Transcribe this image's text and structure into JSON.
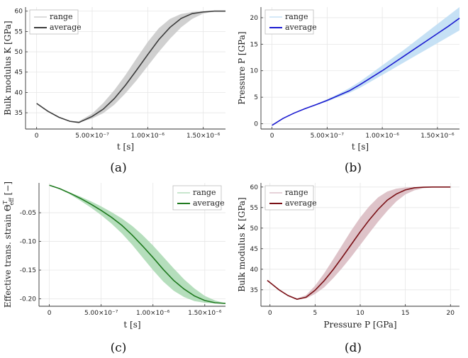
{
  "chart_data": [
    {
      "type": "line",
      "caption": "(a)",
      "xlabel": "t [s]",
      "ylabel": "Bulk modulus K [GPa]",
      "xlim": [
        -1e-07,
        1.7e-06
      ],
      "ylim": [
        31,
        61
      ],
      "xticks": [
        0,
        5e-07,
        1e-06,
        1.5e-06
      ],
      "xtick_labels": [
        "0",
        "5.00×10⁻⁷",
        "1.00×10⁻⁶",
        "1.50×10⁻⁶"
      ],
      "yticks": [
        35,
        40,
        45,
        50,
        55,
        60
      ],
      "ytick_labels": [
        "35",
        "40",
        "45",
        "50",
        "55",
        "60"
      ],
      "grid": true,
      "legend_position": "top-left",
      "line_color": "#3c3c3c",
      "band_color": "#c8c8c8",
      "series": [
        {
          "name": "range",
          "kind": "band",
          "x": [
            0,
            1e-07,
            2e-07,
            3e-07,
            3.8e-07,
            5e-07,
            6e-07,
            7e-07,
            8e-07,
            9e-07,
            1e-06,
            1.1e-06,
            1.2e-06,
            1.3e-06,
            1.4e-06,
            1.5e-06,
            1.6e-06,
            1.7e-06
          ],
          "lower": [
            37.3,
            35.4,
            33.9,
            32.9,
            32.6,
            33.6,
            34.9,
            37.0,
            39.8,
            43.0,
            46.5,
            50.0,
            53.2,
            56.0,
            58.1,
            59.4,
            59.9,
            60.0
          ],
          "upper": [
            37.3,
            35.4,
            33.9,
            33.0,
            32.9,
            34.8,
            37.4,
            40.6,
            44.3,
            48.4,
            52.4,
            55.8,
            58.1,
            59.3,
            59.8,
            60.0,
            60.0,
            60.0
          ]
        },
        {
          "name": "average",
          "kind": "line",
          "x": [
            0,
            1e-07,
            2e-07,
            3e-07,
            3.8e-07,
            5e-07,
            6e-07,
            7e-07,
            8e-07,
            9e-07,
            1e-06,
            1.1e-06,
            1.2e-06,
            1.3e-06,
            1.4e-06,
            1.5e-06,
            1.6e-06,
            1.7e-06
          ],
          "y": [
            37.3,
            35.4,
            33.9,
            32.9,
            32.6,
            34.1,
            35.9,
            38.5,
            41.8,
            45.5,
            49.3,
            53.0,
            56.0,
            58.2,
            59.4,
            59.8,
            60.0,
            60.0
          ]
        }
      ]
    },
    {
      "type": "line",
      "caption": "(b)",
      "xlabel": "t [s]",
      "ylabel": "Pressure P [GPa]",
      "xlim": [
        -1e-07,
        1.7e-06
      ],
      "ylim": [
        -1,
        22
      ],
      "xticks": [
        0,
        5e-07,
        1e-06,
        1.5e-06
      ],
      "xtick_labels": [
        "0",
        "5.00×10⁻⁷",
        "1.00×10⁻⁶",
        "1.50×10⁻⁶"
      ],
      "yticks": [
        0,
        5,
        10,
        15,
        20
      ],
      "ytick_labels": [
        "0",
        "5",
        "10",
        "15",
        "20"
      ],
      "grid": true,
      "legend_position": "top-left",
      "line_color": "#1a1ad0",
      "band_color": "#bcdcf3",
      "series": [
        {
          "name": "range",
          "kind": "band",
          "x": [
            0,
            1e-07,
            2e-07,
            3e-07,
            4e-07,
            5e-07,
            6e-07,
            7e-07,
            8e-07,
            9e-07,
            1e-06,
            1.1e-06,
            1.2e-06,
            1.3e-06,
            1.4e-06,
            1.5e-06,
            1.6e-06,
            1.7e-06
          ],
          "lower": [
            -0.3,
            1.0,
            2.0,
            2.8,
            3.5,
            4.2,
            5.0,
            5.8,
            6.8,
            8.0,
            9.2,
            10.4,
            11.6,
            12.8,
            14.0,
            15.2,
            16.4,
            17.6
          ],
          "upper": [
            -0.3,
            1.0,
            2.0,
            2.9,
            3.7,
            4.6,
            5.6,
            6.7,
            8.0,
            9.5,
            11.0,
            12.5,
            14.0,
            15.6,
            17.2,
            18.8,
            20.4,
            22.0
          ]
        },
        {
          "name": "average",
          "kind": "line",
          "x": [
            0,
            1e-07,
            2e-07,
            3e-07,
            4e-07,
            5e-07,
            6e-07,
            7e-07,
            8e-07,
            9e-07,
            1e-06,
            1.1e-06,
            1.2e-06,
            1.3e-06,
            1.4e-06,
            1.5e-06,
            1.6e-06,
            1.7e-06
          ],
          "y": [
            -0.3,
            1.0,
            2.0,
            2.85,
            3.6,
            4.4,
            5.3,
            6.2,
            7.4,
            8.7,
            10.0,
            11.4,
            12.8,
            14.2,
            15.6,
            17.0,
            18.4,
            19.9
          ]
        }
      ]
    },
    {
      "type": "line",
      "caption": "(c)",
      "xlabel": "t [s]",
      "ylabel": "Effective trans. strain Θ",
      "ylabel_sup": "T",
      "ylabel_sub": "eff",
      "ylabel_tail": " [−]",
      "xlim": [
        -1e-07,
        1.7e-06
      ],
      "ylim": [
        -0.213,
        0.002
      ],
      "xticks": [
        0,
        5e-07,
        1e-06,
        1.5e-06
      ],
      "xtick_labels": [
        "0",
        "5.00×10⁻⁷",
        "1.00×10⁻⁶",
        "1.50×10⁻⁶"
      ],
      "yticks": [
        -0.2,
        -0.15,
        -0.1,
        -0.05
      ],
      "ytick_labels": [
        "-0.20",
        "-0.15",
        "-0.10",
        "-0.05"
      ],
      "grid": true,
      "legend_position": "top-right",
      "line_color": "#1f7a1f",
      "band_color": "#a8d8b0",
      "series": [
        {
          "name": "range",
          "kind": "band",
          "x": [
            0,
            1e-07,
            2e-07,
            3e-07,
            4e-07,
            5e-07,
            6e-07,
            7e-07,
            8e-07,
            9e-07,
            1e-06,
            1.1e-06,
            1.2e-06,
            1.3e-06,
            1.4e-06,
            1.5e-06,
            1.6e-06,
            1.7e-06
          ],
          "lower": [
            -0.002,
            -0.009,
            -0.018,
            -0.029,
            -0.041,
            -0.054,
            -0.069,
            -0.086,
            -0.106,
            -0.128,
            -0.15,
            -0.17,
            -0.186,
            -0.197,
            -0.204,
            -0.207,
            -0.208,
            -0.208
          ],
          "upper": [
            -0.002,
            -0.008,
            -0.015,
            -0.022,
            -0.03,
            -0.039,
            -0.049,
            -0.06,
            -0.073,
            -0.089,
            -0.107,
            -0.127,
            -0.147,
            -0.166,
            -0.182,
            -0.195,
            -0.203,
            -0.208
          ]
        },
        {
          "name": "average",
          "kind": "line",
          "x": [
            0,
            1e-07,
            2e-07,
            3e-07,
            4e-07,
            5e-07,
            6e-07,
            7e-07,
            8e-07,
            9e-07,
            1e-06,
            1.1e-06,
            1.2e-06,
            1.3e-06,
            1.4e-06,
            1.5e-06,
            1.6e-06,
            1.7e-06
          ],
          "y": [
            -0.002,
            -0.008,
            -0.016,
            -0.025,
            -0.035,
            -0.046,
            -0.058,
            -0.072,
            -0.089,
            -0.108,
            -0.128,
            -0.149,
            -0.168,
            -0.183,
            -0.195,
            -0.203,
            -0.207,
            -0.208
          ]
        }
      ]
    },
    {
      "type": "line",
      "caption": "(d)",
      "xlabel": "Pressure P [GPa]",
      "ylabel": "Bulk modulus K [GPa]",
      "xlim": [
        -1,
        21
      ],
      "ylim": [
        31,
        61
      ],
      "xticks": [
        0,
        5,
        10,
        15,
        20
      ],
      "xtick_labels": [
        "0",
        "5",
        "10",
        "15",
        "20"
      ],
      "yticks": [
        35,
        40,
        45,
        50,
        55,
        60
      ],
      "ytick_labels": [
        "35",
        "40",
        "45",
        "50",
        "55",
        "60"
      ],
      "grid": true,
      "legend_position": "top-left",
      "line_color": "#7a1016",
      "band_color": "#d8b8c0",
      "series": [
        {
          "name": "range",
          "kind": "band",
          "x": [
            -0.3,
            1,
            2,
            3,
            4,
            5,
            6,
            7,
            8,
            9,
            10,
            11,
            12,
            13,
            14,
            15,
            16,
            17,
            18,
            19,
            20
          ],
          "lower": [
            37.3,
            35.0,
            33.6,
            32.7,
            32.9,
            34.0,
            35.6,
            37.8,
            40.3,
            43.0,
            45.9,
            48.8,
            51.6,
            54.2,
            56.5,
            58.2,
            59.2,
            59.7,
            59.9,
            60.0,
            60.0
          ],
          "upper": [
            37.3,
            35.0,
            33.7,
            32.9,
            33.7,
            36.0,
            39.0,
            42.4,
            45.9,
            49.4,
            52.6,
            55.3,
            57.5,
            58.9,
            59.6,
            59.9,
            60.0,
            60.0,
            60.0,
            60.0,
            60.0
          ]
        },
        {
          "name": "average",
          "kind": "line",
          "x": [
            -0.3,
            1,
            2,
            3,
            4,
            5,
            6,
            7,
            8,
            9,
            10,
            11,
            12,
            13,
            14,
            15,
            16,
            17,
            18,
            19,
            20
          ],
          "y": [
            37.3,
            35.0,
            33.6,
            32.7,
            33.2,
            34.9,
            37.2,
            39.9,
            42.9,
            46.0,
            49.1,
            52.0,
            54.6,
            56.8,
            58.3,
            59.3,
            59.8,
            59.95,
            60.0,
            60.0,
            60.0
          ]
        }
      ]
    }
  ]
}
